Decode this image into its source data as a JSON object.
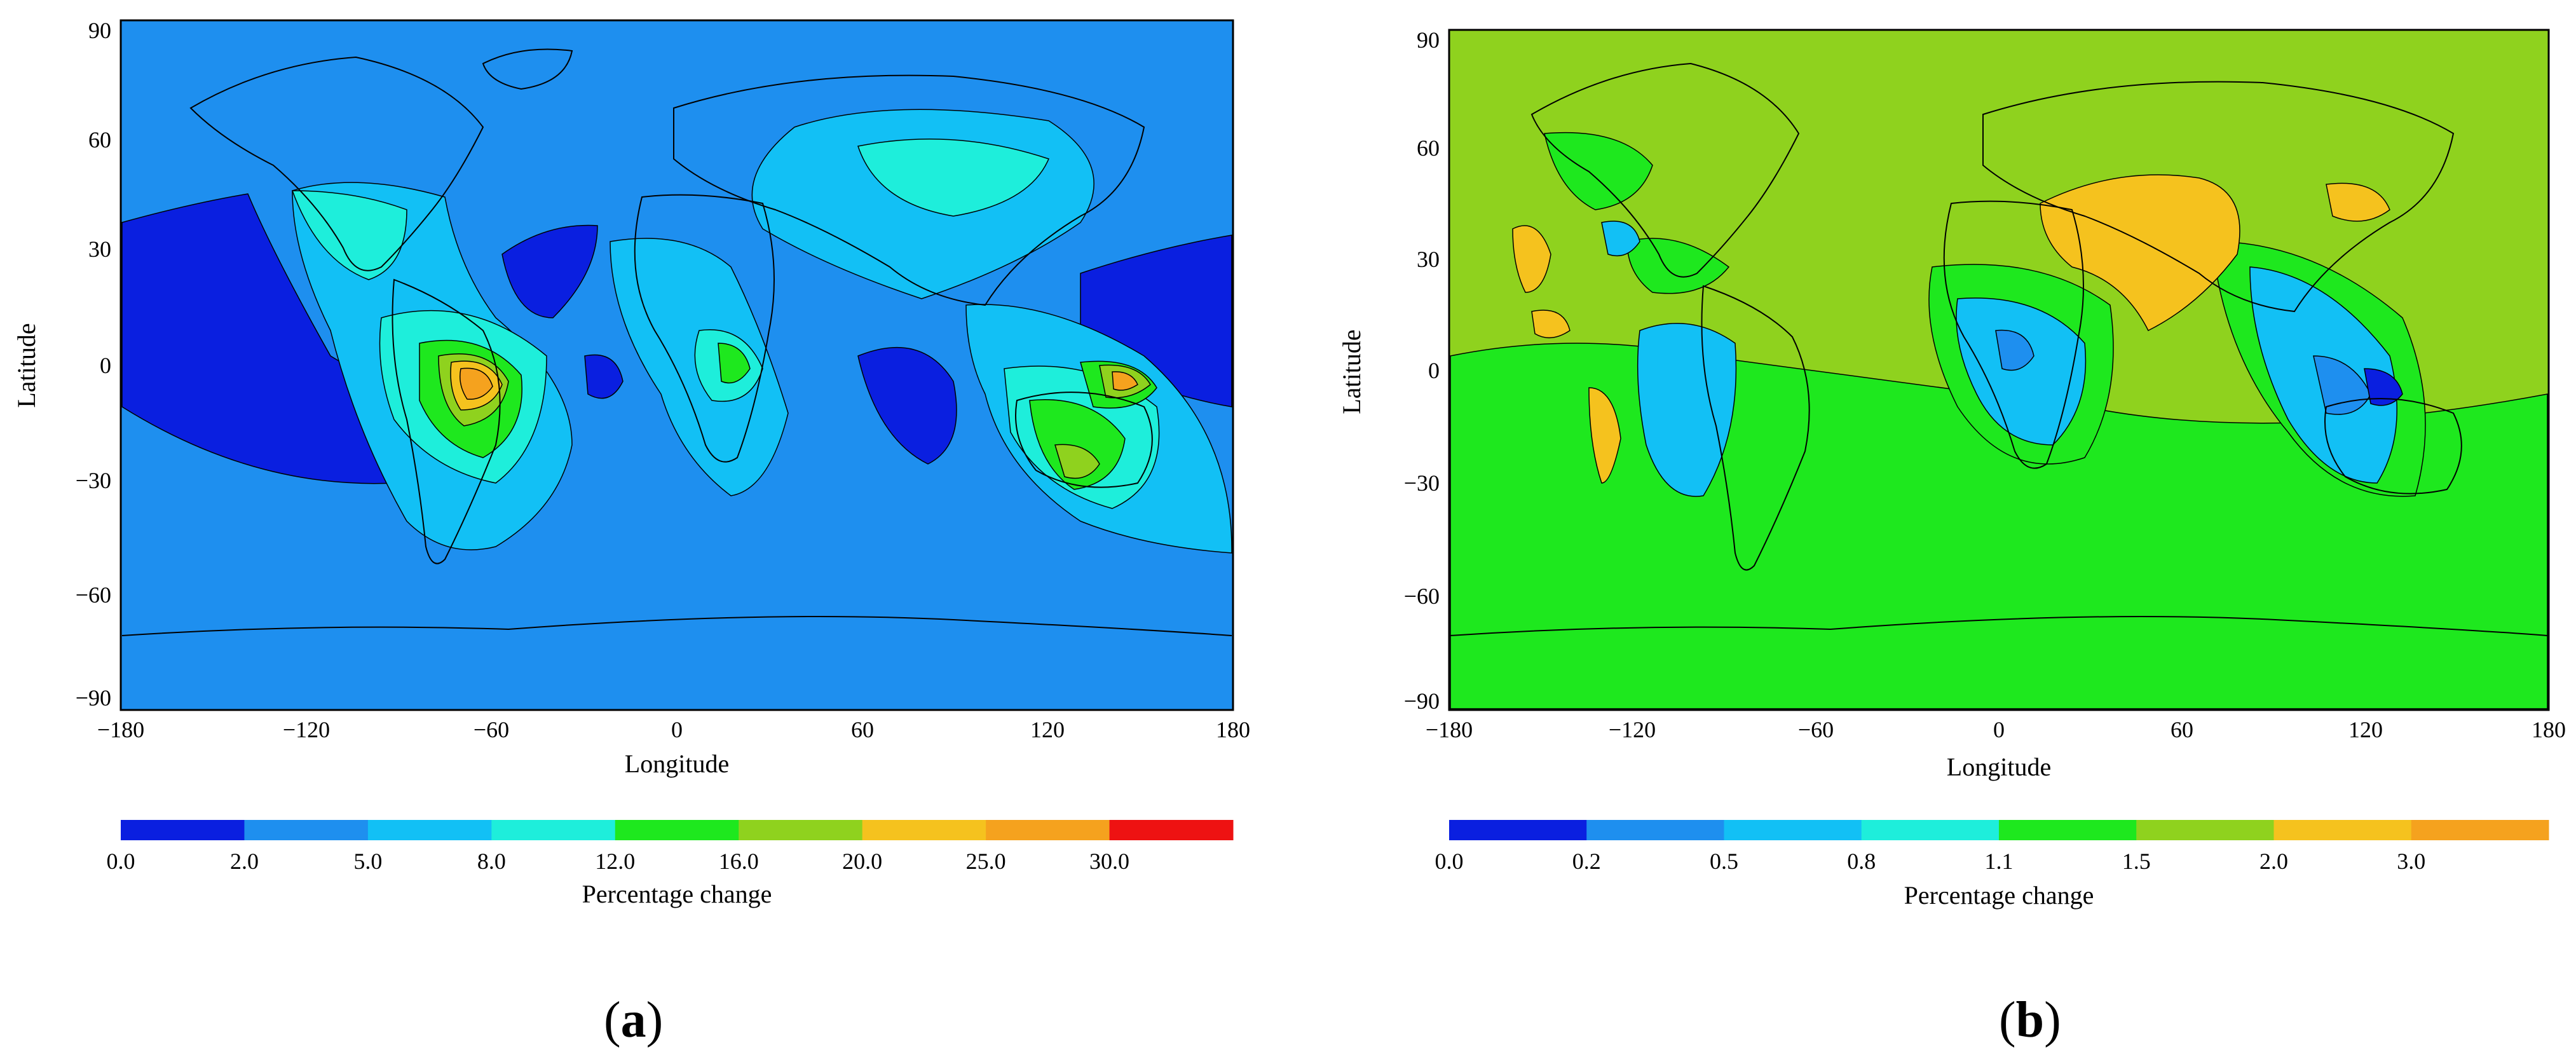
{
  "panels": [
    {
      "id": "a",
      "label_open": "(",
      "label": "a",
      "label_close": ")",
      "map": {
        "background": "#1e8fef",
        "ocean_low": "#0022e0",
        "x_ticks": [
          "−180",
          "−120",
          "−60",
          "0",
          "60",
          "120",
          "180"
        ],
        "y_ticks": [
          "90",
          "60",
          "30",
          "0",
          "−30",
          "−60",
          "−90"
        ],
        "xlabel": "Longitude",
        "ylabel": "Latitude"
      },
      "colorbar": {
        "colors": [
          "#0a1fe0",
          "#1e8fef",
          "#12c0f5",
          "#1eeedb",
          "#1ee81e",
          "#8fd21e",
          "#f5c21e",
          "#f5a21e",
          "#ee1212"
        ],
        "tick_labels": [
          "0.0",
          "2.0",
          "5.0",
          "8.0",
          "12.0",
          "16.0",
          "20.0",
          "25.0",
          "30.0"
        ],
        "label": "Percentage change"
      }
    },
    {
      "id": "b",
      "label_open": "(",
      "label": "b",
      "label_close": ")",
      "map": {
        "background": "#8fd21e",
        "ocean_low": "#12e812",
        "x_ticks": [
          "−180",
          "−120",
          "−60",
          "0",
          "60",
          "120",
          "180"
        ],
        "y_ticks": [
          "90",
          "60",
          "30",
          "0",
          "−30",
          "−60",
          "−90"
        ],
        "xlabel": "Longitude",
        "ylabel": "Latitude"
      },
      "colorbar": {
        "colors": [
          "#0a1fe0",
          "#1e8fef",
          "#12c0f5",
          "#1eeedb",
          "#1ee81e",
          "#8fd21e",
          "#f5c21e",
          "#f5a21e"
        ],
        "tick_labels": [
          "0.0",
          "0.2",
          "0.5",
          "0.8",
          "1.1",
          "1.5",
          "2.0",
          "3.0"
        ],
        "label": "Percentage change"
      }
    }
  ]
}
